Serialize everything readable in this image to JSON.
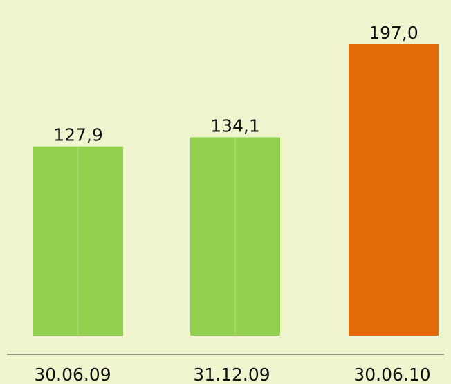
{
  "chart_data": {
    "type": "bar",
    "categories": [
      "30.06.09",
      "31.12.09",
      "30.06.10"
    ],
    "values": [
      127.9,
      134.1,
      197.0
    ],
    "value_labels": [
      "127,9",
      "134,1",
      "197,0"
    ],
    "colors": [
      "#92d050",
      "#92d050",
      "#e36c09"
    ]
  }
}
